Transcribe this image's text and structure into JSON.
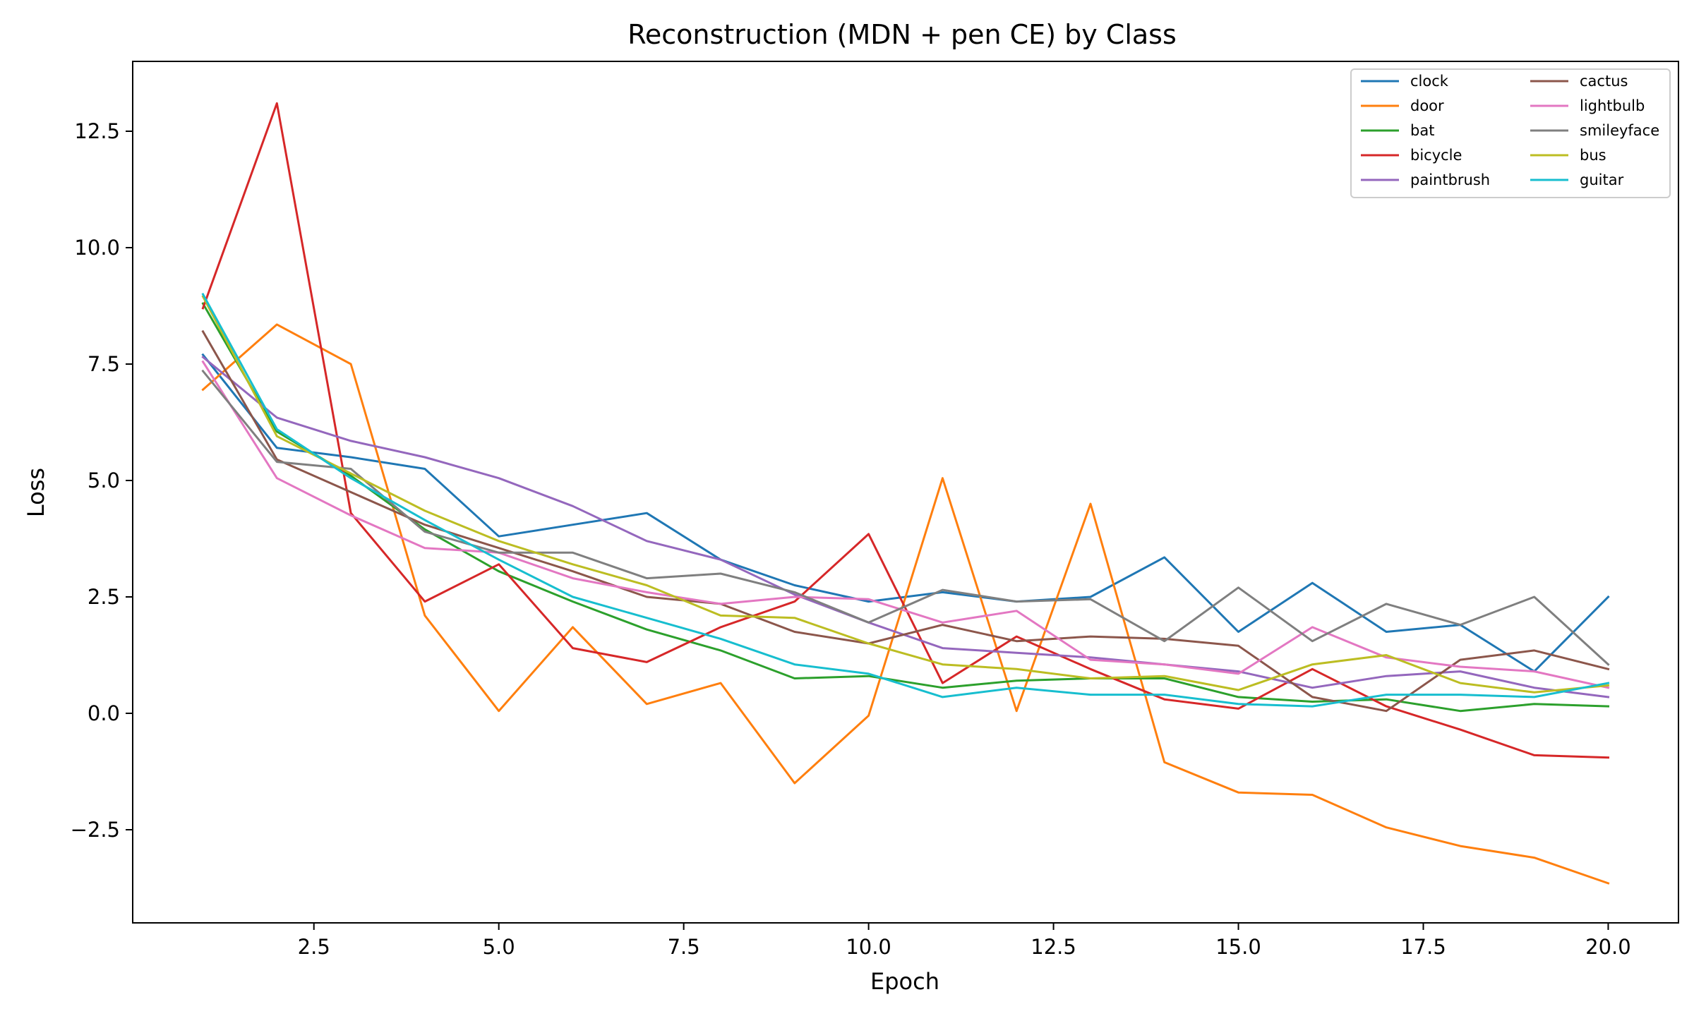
{
  "chart_data": {
    "type": "line",
    "title": "Reconstruction (MDN + pen CE) by Class",
    "xlabel": "Epoch",
    "ylabel": "Loss",
    "xlim": [
      0.05,
      20.95
    ],
    "ylim": [
      -4.5,
      14.0
    ],
    "xticks": [
      2.5,
      5.0,
      7.5,
      10.0,
      12.5,
      15.0,
      17.5,
      20.0
    ],
    "xtick_labels": [
      "2.5",
      "5.0",
      "7.5",
      "10.0",
      "12.5",
      "15.0",
      "17.5",
      "20.0"
    ],
    "yticks": [
      -2.5,
      0.0,
      2.5,
      5.0,
      7.5,
      10.0,
      12.5
    ],
    "ytick_labels": [
      "−2.5",
      "0.0",
      "2.5",
      "5.0",
      "7.5",
      "10.0",
      "12.5"
    ],
    "grid": false,
    "legend_position": "top-right",
    "legend_columns": 2,
    "x": [
      1,
      2,
      3,
      4,
      5,
      6,
      7,
      8,
      9,
      10,
      11,
      12,
      13,
      14,
      15,
      16,
      17,
      18,
      19,
      20
    ],
    "series": [
      {
        "name": "clock",
        "color": "#1f77b4",
        "values": [
          7.7,
          5.7,
          5.5,
          5.25,
          3.8,
          4.05,
          4.3,
          3.3,
          2.75,
          2.4,
          2.6,
          2.4,
          2.5,
          3.35,
          1.75,
          2.8,
          1.75,
          1.9,
          0.9,
          2.5
        ]
      },
      {
        "name": "door",
        "color": "#ff7f0e",
        "values": [
          6.95,
          8.35,
          7.5,
          2.1,
          0.05,
          1.85,
          0.2,
          0.65,
          -1.5,
          -0.05,
          5.05,
          0.05,
          4.5,
          -1.05,
          -1.7,
          -1.75,
          -2.45,
          -2.85,
          -3.1,
          -3.65
        ]
      },
      {
        "name": "bat",
        "color": "#2ca02c",
        "values": [
          8.8,
          6.05,
          5.1,
          3.95,
          3.05,
          2.4,
          1.8,
          1.35,
          0.75,
          0.8,
          0.55,
          0.7,
          0.75,
          0.75,
          0.35,
          0.25,
          0.3,
          0.05,
          0.2,
          0.15
        ]
      },
      {
        "name": "bicycle",
        "color": "#d62728",
        "values": [
          8.7,
          13.1,
          4.3,
          2.4,
          3.2,
          1.4,
          1.1,
          1.85,
          2.4,
          3.85,
          0.65,
          1.65,
          0.95,
          0.3,
          0.1,
          0.95,
          0.15,
          -0.35,
          -0.9,
          -0.95
        ]
      },
      {
        "name": "paintbrush",
        "color": "#9467bd",
        "values": [
          7.65,
          6.35,
          5.85,
          5.5,
          5.05,
          4.45,
          3.7,
          3.3,
          2.55,
          1.95,
          1.4,
          1.3,
          1.2,
          1.05,
          0.9,
          0.55,
          0.8,
          0.9,
          0.55,
          0.35
        ]
      },
      {
        "name": "cactus",
        "color": "#8c564b",
        "values": [
          8.2,
          5.45,
          4.75,
          4.05,
          3.55,
          3.05,
          2.5,
          2.35,
          1.75,
          1.5,
          1.9,
          1.55,
          1.65,
          1.6,
          1.45,
          0.35,
          0.05,
          1.15,
          1.35,
          0.95
        ]
      },
      {
        "name": "lightbulb",
        "color": "#e377c2",
        "values": [
          7.55,
          5.05,
          4.25,
          3.55,
          3.45,
          2.9,
          2.6,
          2.35,
          2.5,
          2.45,
          1.95,
          2.2,
          1.15,
          1.05,
          0.85,
          1.85,
          1.2,
          1.0,
          0.9,
          0.55
        ]
      },
      {
        "name": "smileyface",
        "color": "#7f7f7f",
        "values": [
          7.35,
          5.4,
          5.25,
          3.9,
          3.45,
          3.45,
          2.9,
          3.0,
          2.6,
          1.95,
          2.65,
          2.4,
          2.45,
          1.55,
          2.7,
          1.55,
          2.35,
          1.9,
          2.5,
          1.05
        ]
      },
      {
        "name": "bus",
        "color": "#bcbd22",
        "values": [
          8.95,
          5.95,
          5.15,
          4.35,
          3.7,
          3.2,
          2.75,
          2.1,
          2.05,
          1.5,
          1.05,
          0.95,
          0.75,
          0.8,
          0.5,
          1.05,
          1.25,
          0.65,
          0.45,
          0.6
        ]
      },
      {
        "name": "guitar",
        "color": "#17becf",
        "values": [
          9.0,
          6.1,
          5.05,
          4.15,
          3.3,
          2.5,
          2.05,
          1.6,
          1.05,
          0.85,
          0.35,
          0.55,
          0.4,
          0.4,
          0.2,
          0.15,
          0.4,
          0.4,
          0.35,
          0.65
        ]
      }
    ]
  }
}
